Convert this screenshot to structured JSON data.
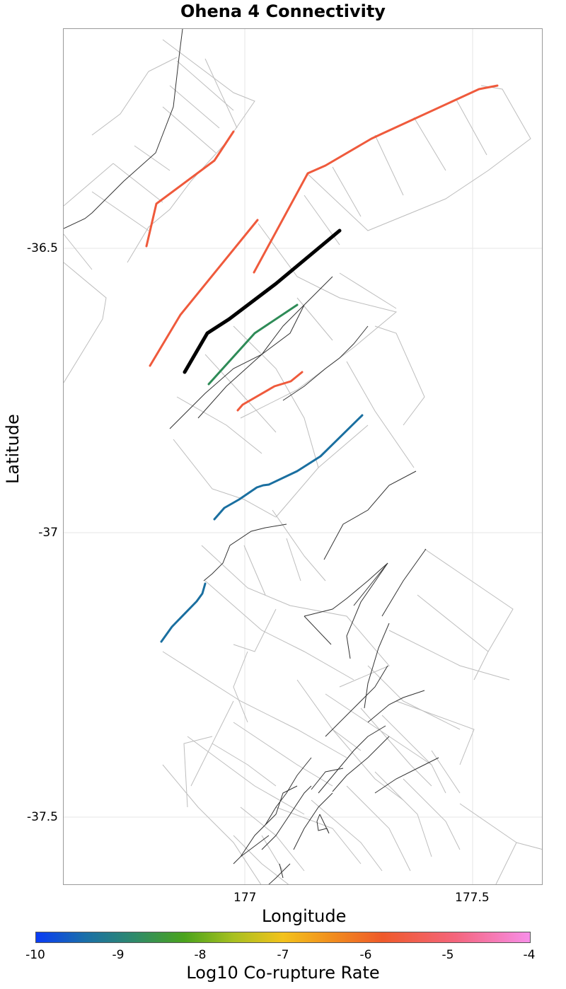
{
  "title": "Ohena 4 Connectivity",
  "axes": {
    "x_title": "Longitude",
    "y_title": "Latitude",
    "x_ticks": [
      "177",
      "177.5"
    ],
    "y_ticks": [
      "-36.5",
      "-37",
      "-37.5"
    ]
  },
  "colorbar": {
    "title": "Log10 Co-rupture Rate",
    "ticks": [
      "-10",
      "-9",
      "-8",
      "-7",
      "-6",
      "-5",
      "-4"
    ],
    "colors": [
      "#0a3cf5",
      "#4aa31c",
      "#f3c21c",
      "#ef5a2a",
      "#f78ee8"
    ]
  },
  "legend_colors": {
    "selected_fault": "#000000",
    "rate_high": "#ef5a3c",
    "rate_mid": "#2e8b57",
    "rate_low": "#1a6fa0",
    "fault_trace": "#333333",
    "fault_patch": "#bbbbbb"
  }
}
